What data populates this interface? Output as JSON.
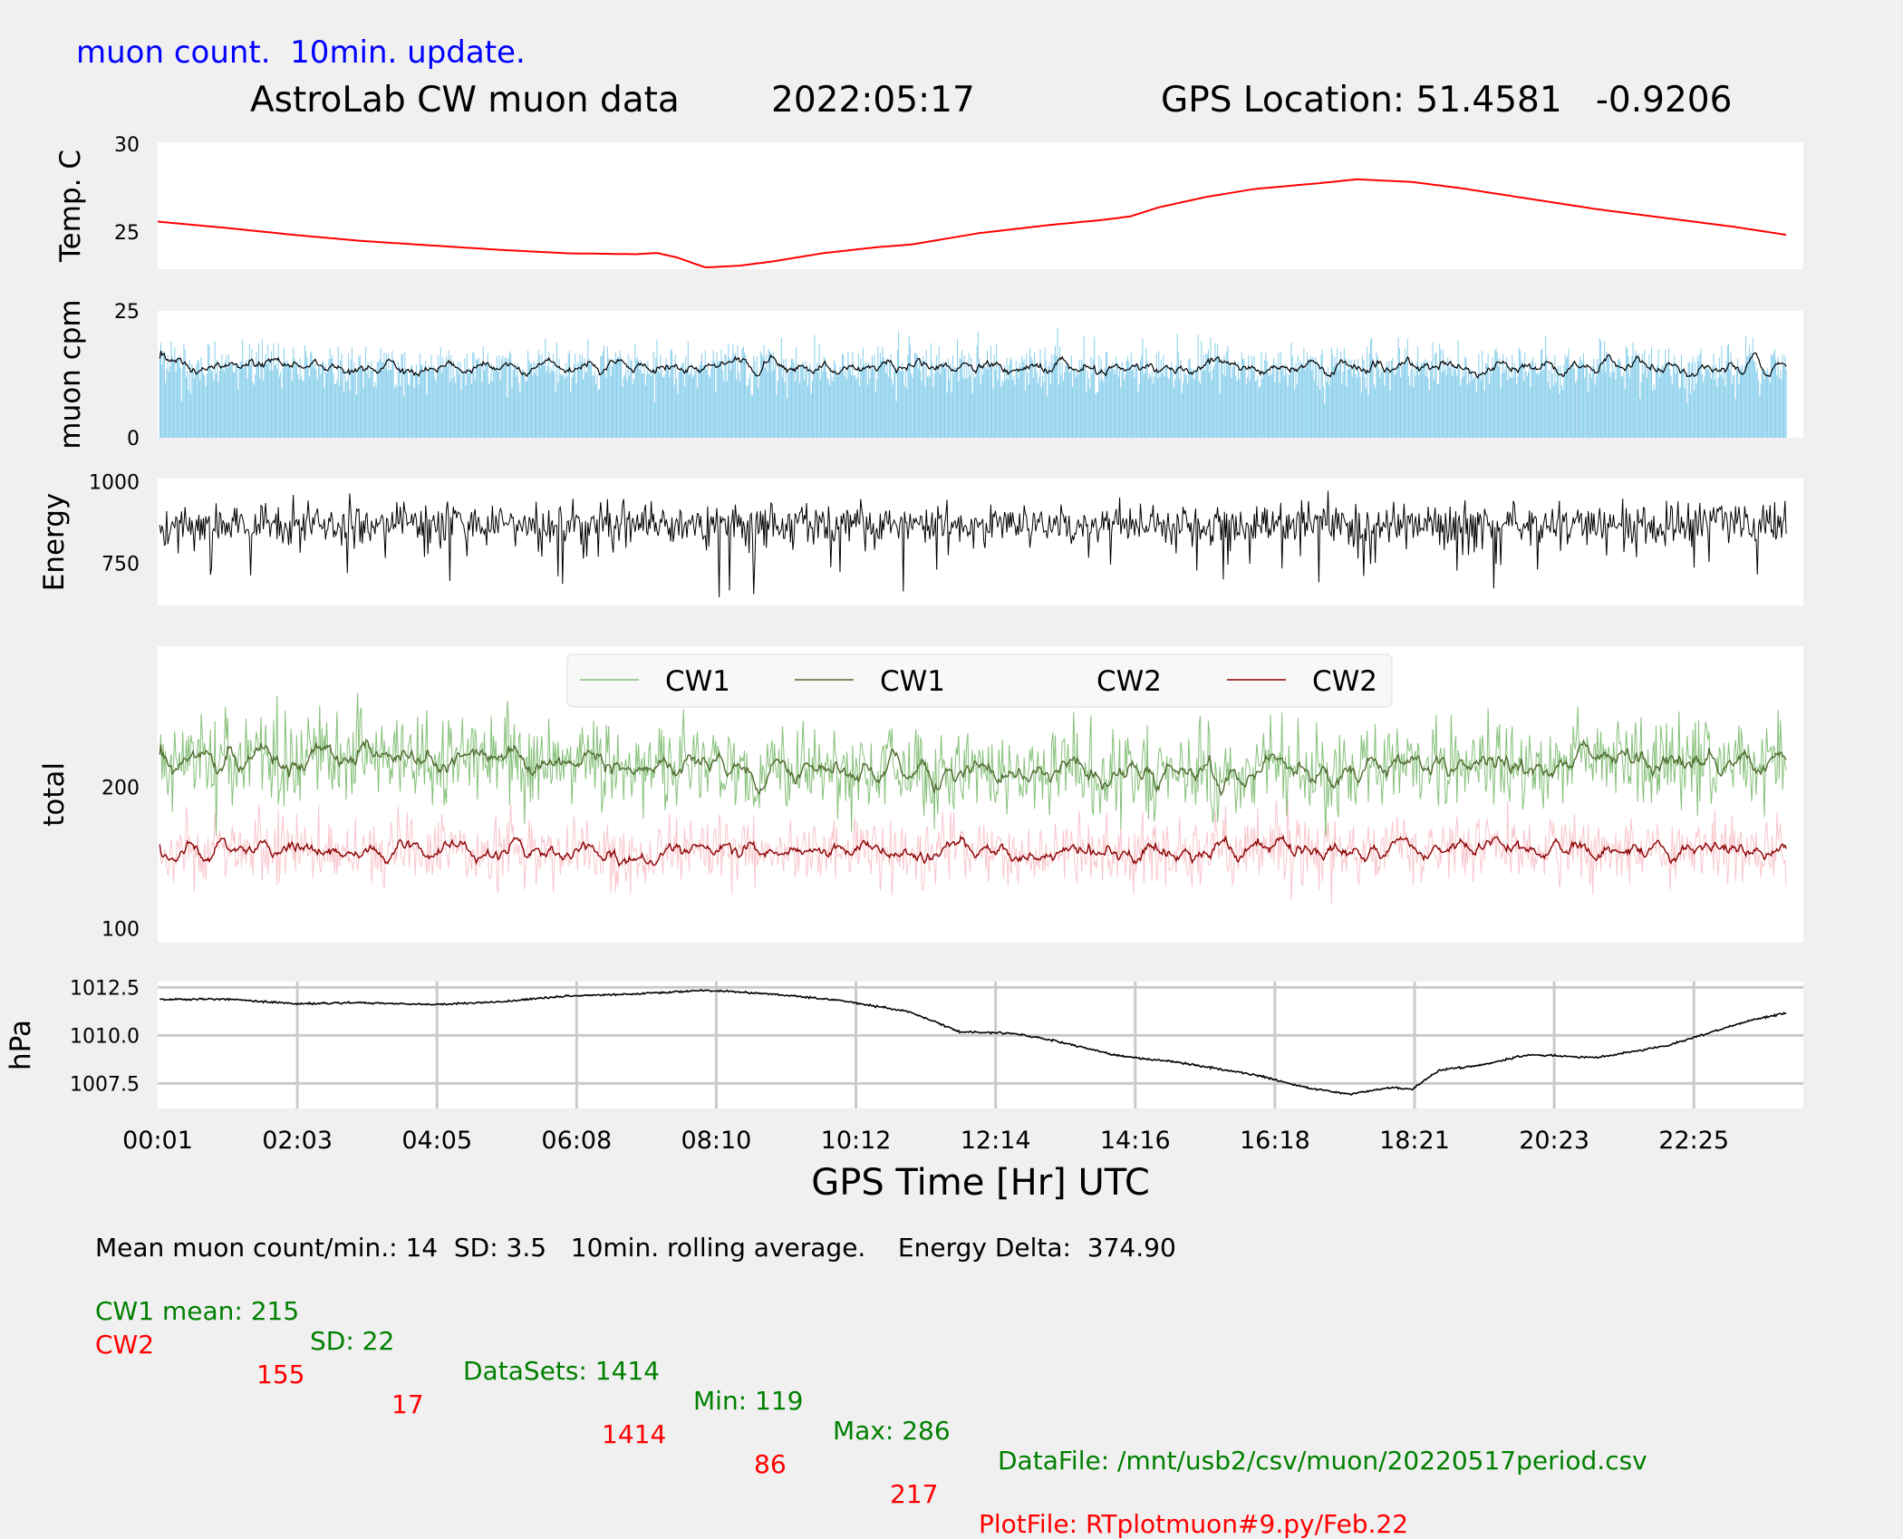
{
  "header": {
    "note": "muon count.  10min. update.",
    "title": "AstroLab CW muon data",
    "date": "2022:05:17",
    "gps_label": "GPS Location: 51.4581   -0.9206"
  },
  "colors": {
    "note_blue": "#0000ff",
    "temperature": "#ff0000",
    "muon_bars": "#87ceeb",
    "cw1_raw": "#86c07a",
    "cw1_avg": "#4e6b2e",
    "cw2_raw": "#f8c6cc",
    "cw2_avg": "#8b0000",
    "footer_cw1": "#008000",
    "footer_cw2": "#ff0000"
  },
  "chart_data": [
    {
      "type": "line",
      "ylabel": "Temp. C",
      "ylim": [
        22.9,
        30.1
      ],
      "yticks": [
        "25",
        "30"
      ],
      "series": [
        {
          "values": [
            [
              0.02,
              25.6
            ],
            [
              1,
              25.25
            ],
            [
              2,
              24.85
            ],
            [
              3,
              24.5
            ],
            [
              4,
              24.25
            ],
            [
              5,
              24.0
            ],
            [
              6,
              23.8
            ],
            [
              7.0,
              23.75
            ],
            [
              7.3,
              23.82
            ],
            [
              7.6,
              23.55
            ],
            [
              8.0,
              23.0
            ],
            [
              8.5,
              23.1
            ],
            [
              9,
              23.35
            ],
            [
              9.7,
              23.8
            ],
            [
              10.5,
              24.15
            ],
            [
              11,
              24.3
            ],
            [
              12,
              24.95
            ],
            [
              13,
              25.4
            ],
            [
              13.8,
              25.7
            ],
            [
              14.2,
              25.9
            ],
            [
              14.6,
              26.4
            ],
            [
              15.3,
              27.0
            ],
            [
              16,
              27.45
            ],
            [
              17,
              27.8
            ],
            [
              17.5,
              28.0
            ],
            [
              18.3,
              27.85
            ],
            [
              19,
              27.5
            ],
            [
              20,
              26.9
            ],
            [
              21,
              26.3
            ],
            [
              22,
              25.8
            ],
            [
              23,
              25.3
            ],
            [
              23.75,
              24.85
            ]
          ]
        }
      ],
      "note": "values approximate; y-axis ticks printed 25 and 30"
    },
    {
      "type": "bar",
      "ylabel": "muon cpm",
      "ylim": [
        0,
        25
      ],
      "yticks": [
        "0",
        "25"
      ],
      "mean": 14,
      "sd": 3.5,
      "rolling_average_min": 10
    },
    {
      "type": "line",
      "ylabel": "Energy",
      "ylim": [
        620,
        1010
      ],
      "yticks": [
        "750",
        "1000"
      ],
      "mean": 870
    },
    {
      "type": "line",
      "ylabel": "total",
      "ylim": [
        90,
        300
      ],
      "yticks": [
        "100",
        "200"
      ],
      "legend": "top-center",
      "series": [
        {
          "name": "CW1",
          "style": "raw",
          "mean": 215,
          "sd": 22,
          "min": 119,
          "max": 286,
          "datasets": 1414
        },
        {
          "name": "CW1",
          "style": "10min rolling average",
          "mean": 215
        },
        {
          "name": "CW2",
          "style": "raw",
          "mean": 155,
          "sd": 17,
          "min": 86,
          "max": 217,
          "datasets": 1414
        },
        {
          "name": "CW2",
          "style": "10min rolling average",
          "mean": 155
        }
      ]
    },
    {
      "type": "line",
      "ylabel": "hPa",
      "ylim": [
        1006.2,
        1012.8
      ],
      "yticks": [
        "1007.5",
        "1010.0",
        "1012.5"
      ],
      "xlabel": "GPS Time  [Hr] UTC",
      "xticks": [
        "00:01",
        "02:03",
        "04:05",
        "06:08",
        "08:10",
        "10:12",
        "12:14",
        "14:16",
        "16:18",
        "18:21",
        "20:23",
        "22:25"
      ],
      "grid": true,
      "series": [
        {
          "values": [
            [
              0.02,
              1011.85
            ],
            [
              1,
              1011.9
            ],
            [
              2,
              1011.65
            ],
            [
              3,
              1011.7
            ],
            [
              4,
              1011.6
            ],
            [
              5,
              1011.75
            ],
            [
              6,
              1012.05
            ],
            [
              7,
              1012.15
            ],
            [
              8,
              1012.35
            ],
            [
              9,
              1012.15
            ],
            [
              10,
              1011.8
            ],
            [
              11,
              1011.2
            ],
            [
              11.7,
              1010.2
            ],
            [
              12.5,
              1010.1
            ],
            [
              13,
              1009.8
            ],
            [
              14,
              1008.95
            ],
            [
              15,
              1008.55
            ],
            [
              16,
              1007.95
            ],
            [
              16.8,
              1007.25
            ],
            [
              17.4,
              1006.95
            ],
            [
              18.0,
              1007.3
            ],
            [
              18.3,
              1007.2
            ],
            [
              18.7,
              1008.2
            ],
            [
              19.3,
              1008.45
            ],
            [
              20,
              1009.0
            ],
            [
              21,
              1008.85
            ],
            [
              22,
              1009.45
            ],
            [
              22.6,
              1010.1
            ],
            [
              23.3,
              1010.85
            ],
            [
              23.75,
              1011.15
            ]
          ]
        }
      ]
    }
  ],
  "footer": {
    "summary": "Mean muon count/min.: 14  SD: 3.5   10min. rolling average.    Energy Delta:  374.90",
    "cw1": {
      "label": "CW1 mean: 215",
      "sd": "SD: 22",
      "datasets": "DataSets: 1414",
      "min": "Min: 119",
      "max": "Max: 286",
      "file": "DataFile: /mnt/usb2/csv/muon/20220517period.csv"
    },
    "cw2": {
      "label": "CW2",
      "mean": "155",
      "sd": "17",
      "datasets": "1414",
      "min": "86",
      "max": "217",
      "file": "PlotFile: RTplotmuon#9.py/Feb.22"
    }
  }
}
